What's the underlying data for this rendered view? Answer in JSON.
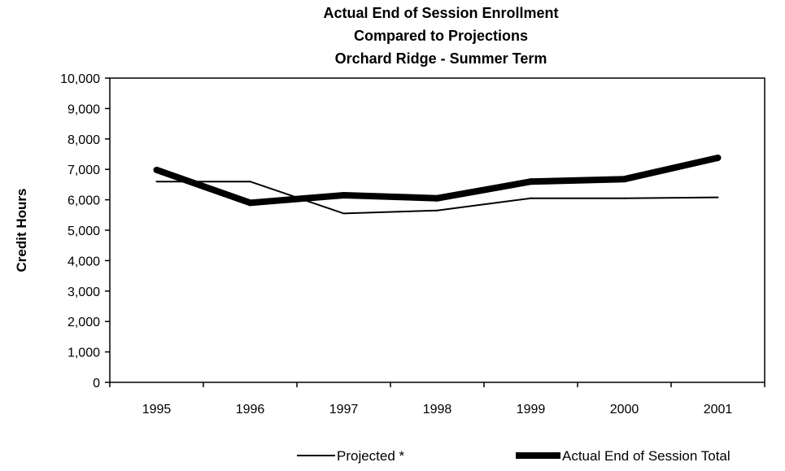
{
  "chart_data": {
    "type": "line",
    "title": [
      "Actual End of Session Enrollment",
      "Compared to Projections",
      "Orchard Ridge - Summer Term"
    ],
    "xlabel": "",
    "ylabel": "Credit Hours",
    "categories": [
      "1995",
      "1996",
      "1997",
      "1998",
      "1999",
      "2000",
      "2001"
    ],
    "y_ticks": [
      "0",
      "1,000",
      "2,000",
      "3,000",
      "4,000",
      "5,000",
      "6,000",
      "7,000",
      "8,000",
      "9,000",
      "10,000"
    ],
    "ylim": [
      0,
      10000
    ],
    "grid": false,
    "legend_position": "bottom",
    "series": [
      {
        "name": "Projected *",
        "values": [
          6600,
          6600,
          5550,
          5650,
          6050,
          6050,
          6080
        ],
        "color": "#000000",
        "style": "thin"
      },
      {
        "name": "Actual End of Session Total",
        "values": [
          6980,
          5900,
          6150,
          6050,
          6600,
          6680,
          7380
        ],
        "color": "#000000",
        "style": "thick"
      }
    ]
  }
}
